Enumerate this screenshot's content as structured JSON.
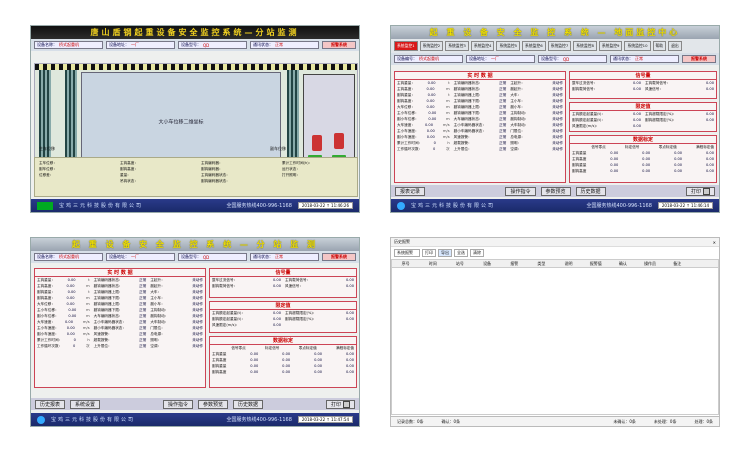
{
  "panels": {
    "tl": {
      "title": "唐山盾钢起重设备安全监控系统—分站监测",
      "info": [
        {
          "k": "设备名称：",
          "v": "桥式起重机"
        },
        {
          "k": "设备地址：",
          "v": "一厂"
        },
        {
          "k": "设备型号：",
          "v": "QD"
        },
        {
          "k": "通讯状态：",
          "v": "正常"
        }
      ],
      "alarm": "报警系统",
      "cam_label": "大小车位移二维坐标",
      "labels_left": [
        "主车位移：",
        "副车位移：",
        "位移差："
      ],
      "labels_mid": [
        "主钩高度：",
        "副钩高度：",
        "重量：",
        "吊钩状态："
      ],
      "labels_right": [
        "主钩编码器：",
        "副钩编码器：",
        "主钩编码器状态：",
        "副钩编码器状态："
      ],
      "status_right": [
        "累计工作时间(h)：",
        "运行状态：",
        "打开照明："
      ],
      "legend": [
        "主车位移",
        "副车位移"
      ],
      "company": "宝鸡三元科技股份有限公司",
      "hotline": "全国服务热线400-996-1168",
      "time": "2018-03-22 ↑ 11:46:26"
    },
    "tr": {
      "title": "起 重 设 备 安 全 监 控 系 统 — 地面监控中心",
      "tabs": [
        "系统监控1",
        "系统监控2",
        "系统监控3",
        "系统监控4",
        "系统监控5",
        "系统监控6",
        "系统监控7",
        "系统监控8",
        "系统监控9",
        "系统监控10"
      ],
      "tab_extra": [
        "帮助",
        "退出"
      ],
      "info": [
        {
          "k": "设备编号：",
          "v": "桥式起重机"
        },
        {
          "k": "设备地址：",
          "v": "一厂"
        },
        {
          "k": "设备型号：",
          "v": "QD"
        },
        {
          "k": "通讯状态：",
          "v": "正常"
        }
      ],
      "alarm": "报警系统",
      "sec_realtime": "实 时 数 据",
      "sec_signal": "信号量",
      "sec_limit": "限定值",
      "sec_calib": "数据标定",
      "rows_a": [
        [
          "主钩重量：",
          "0.00",
          "t"
        ],
        [
          "主钩高度：",
          "0.00",
          "m"
        ],
        [
          "副钩重量：",
          "0.00",
          "t"
        ],
        [
          "副钩高度：",
          "0.00",
          "m"
        ],
        [
          "大车位移：",
          "0.00",
          "m"
        ],
        [
          "主小车位移：",
          "0.00",
          "m"
        ],
        [
          "副小车位移：",
          "0.00",
          "m"
        ],
        [
          "大车速度：",
          "0.00",
          "m/s"
        ],
        [
          "主小车速度：",
          "0.00",
          "m/s"
        ],
        [
          "副小车速度：",
          "0.00",
          "m/s"
        ],
        [
          "累计工作时间：",
          "0",
          "h"
        ],
        [
          "工作循环次数：",
          "0",
          "次"
        ]
      ],
      "rows_b": [
        [
          "主钩编码器状态：",
          "正常"
        ],
        [
          "副钩编码器状态：",
          "正常"
        ],
        [
          "主钩编码器上限：",
          "正常"
        ],
        [
          "主钩编码器下限：",
          "正常"
        ],
        [
          "副钩编码器上限：",
          "正常"
        ],
        [
          "副钩编码器下限：",
          "正常"
        ],
        [
          "大车编码器状态：",
          "正常"
        ],
        [
          "主小车编码器状态：",
          "正常"
        ],
        [
          "副小车编码器状态：",
          "正常"
        ],
        [
          "风速报警：",
          "正常"
        ],
        [
          "超载报警：",
          "正常"
        ],
        [
          "上升限位：",
          "正常"
        ]
      ],
      "rows_c": [
        [
          "主起升：",
          "未动作"
        ],
        [
          "副起升：",
          "未动作"
        ],
        [
          "大车：",
          "未动作"
        ],
        [
          "主小车：",
          "未动作"
        ],
        [
          "副小车：",
          "未动作"
        ],
        [
          "主钩制动：",
          "未动作"
        ],
        [
          "副钩制动：",
          "未动作"
        ],
        [
          "大车制动：",
          "未动作"
        ],
        [
          "门限位：",
          "未动作"
        ],
        [
          "总电源：",
          "未动作"
        ],
        [
          "照明：",
          "未动作"
        ],
        [
          "空调：",
          "未动作"
        ]
      ],
      "signal": [
        [
          "整车过流信号：",
          "0.00"
        ],
        [
          "主钩载荷信号：",
          "0.00"
        ],
        [
          "副钩载荷信号：",
          "0.00"
        ],
        [
          "风速信号：",
          "0.00"
        ]
      ],
      "limits": [
        [
          "主钩额定起重量(t)：",
          "0.00"
        ],
        [
          "主钩超载限定(%)：",
          "0.00"
        ],
        [
          "副钩额定起重量(t)：",
          "0.00"
        ],
        [
          "副钩超载限定(%)：",
          "0.00"
        ],
        [
          "风速限定(m/s)：",
          "0.00"
        ]
      ],
      "calib_head": [
        "",
        "信号零点",
        "标定信号",
        "零点标定值",
        "满程标定值"
      ],
      "calib": [
        [
          "主钩重量",
          "0.00",
          "0.00",
          "0.00",
          "0.00"
        ],
        [
          "主钩高度",
          "0.00",
          "0.00",
          "0.00",
          "0.00"
        ],
        [
          "副钩重量",
          "0.00",
          "0.00",
          "0.00",
          "0.00"
        ],
        [
          "副钩高度",
          "0.00",
          "0.00",
          "0.00",
          "0.00"
        ]
      ],
      "buttons": [
        "报表记录",
        "操作指令",
        "参数预览",
        "历史数据",
        "打印"
      ],
      "company": "宝鸡三元科技股份有限公司",
      "hotline": "全国服务热线400-996-1168",
      "time": "2018-03-22 ↑ 11:46:14"
    },
    "bl": {
      "title": "起 重 设 备 安 全 监 控 系 统 — 分 站 监 测",
      "info": [
        {
          "k": "设备名称：",
          "v": "桥式起重机"
        },
        {
          "k": "设备地址：",
          "v": "一厂"
        },
        {
          "k": "设备型号：",
          "v": "QD"
        },
        {
          "k": "通讯状态：",
          "v": "正常"
        }
      ],
      "alarm": "报警系统",
      "buttons": [
        "历史报表",
        "系统设置",
        "操作指令",
        "参数预览",
        "历史数据",
        "打印"
      ],
      "company": "宝鸡三元科技股份有限公司",
      "hotline": "全国服务热线400-996-1168",
      "time": "2018-03-22 ↑ 11:47:54"
    },
    "br": {
      "title": "历史报警",
      "filter": [
        "系统报警",
        "打印",
        "导出",
        "全选",
        "清除"
      ],
      "cols": [
        "序号",
        "时间",
        "站号",
        "设备",
        "报警",
        "类型",
        "说明",
        "报警值",
        "确认",
        "操作员",
        "备注",
        ""
      ],
      "status": [
        "记录总数：0条",
        "确认：0条",
        "未确认：0条",
        "未处理：0条",
        "处理：0条"
      ]
    }
  }
}
